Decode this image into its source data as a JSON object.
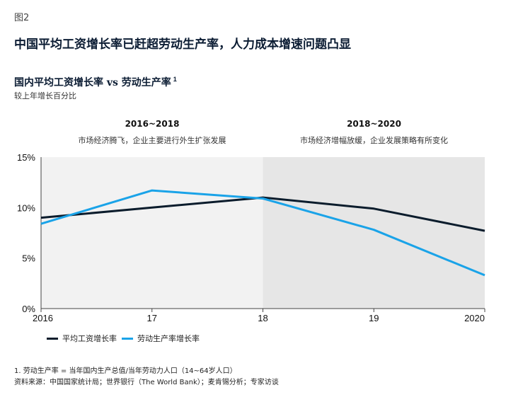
{
  "figure_label": "图2",
  "main_title": "中国平均工资增长率已赶超劳动生产率，人力成本增速问题凸显",
  "chart_title": "国内平均工资增长率 vs 劳动生产率",
  "chart_title_note": "1",
  "subtitle": "较上年增长百分比",
  "periods": [
    {
      "label": "2016~2018",
      "description": "市场经济腾飞，企业主要进行外生扩张发展",
      "shade": "#f2f2f2"
    },
    {
      "label": "2018~2020",
      "description": "市场经济增幅放缓，企业发展策略有所变化",
      "shade": "#e6e6e6"
    }
  ],
  "footnote": "1. 劳动生产率 = 当年国内生产总值/当年劳动力人口（14~64岁人口）",
  "source": "资料来源：中国国家统计局；世界银行（The World Bank）；麦肯锡分析；专家访谈",
  "chart_data": {
    "type": "line",
    "x": [
      "2016",
      "17",
      "18",
      "19",
      "2020"
    ],
    "ylim": [
      0,
      15
    ],
    "yticks": [
      "0%",
      "5%",
      "10%",
      "15%"
    ],
    "ytick_values": [
      0,
      5,
      10,
      15
    ],
    "grid": false,
    "legend_position": "bottom-left",
    "series": [
      {
        "name": "平均工资增长率",
        "color": "#0b1c2c",
        "values": [
          9.0,
          10.0,
          11.0,
          9.9,
          7.7
        ]
      },
      {
        "name": "劳动生产率增长率",
        "color": "#1aa3e8",
        "values": [
          8.4,
          11.7,
          10.9,
          7.8,
          3.3
        ]
      }
    ]
  }
}
